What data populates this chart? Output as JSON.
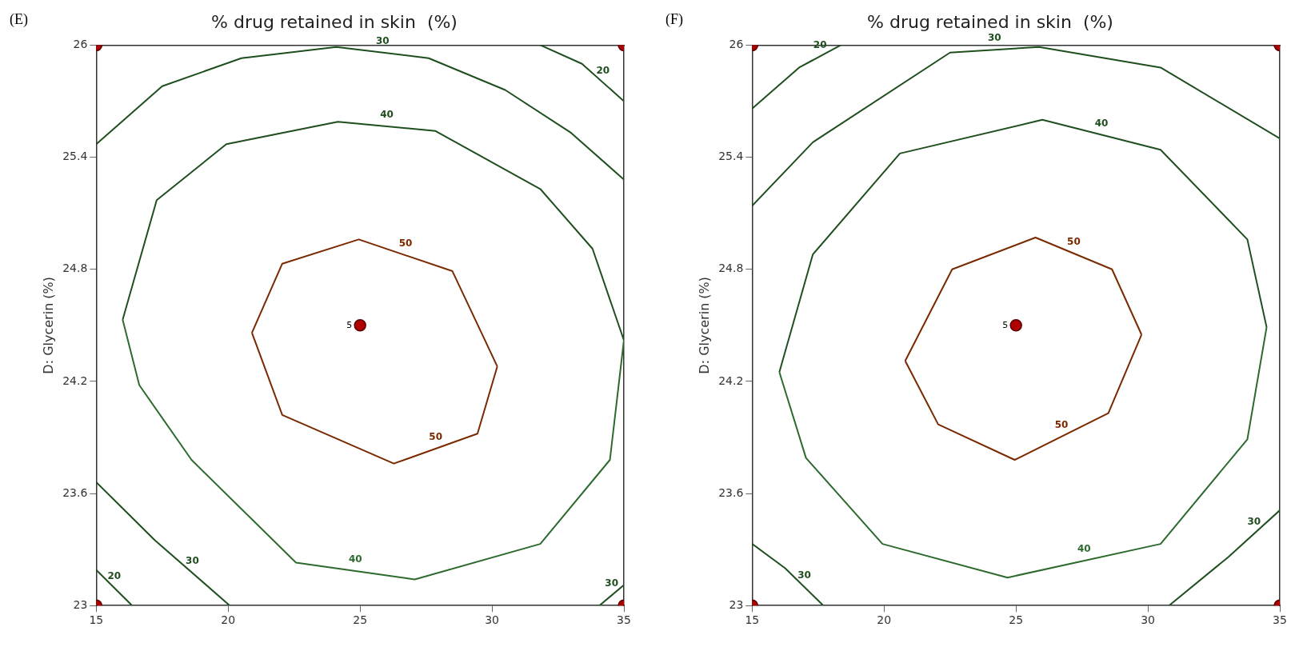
{
  "chart_data": [
    {
      "type": "line",
      "title": "% drug retained in skin  (%)",
      "ylabel": "D: Glycerin (%)",
      "annotations": [
        "(E)",
        {
          "text": "5",
          "x": 25,
          "y": 24.5
        }
      ],
      "xlim": [
        15,
        35
      ],
      "ylim": [
        23,
        26
      ],
      "xticks": [
        15,
        20,
        25,
        30,
        35
      ],
      "yticks": [
        23,
        23.6,
        24.2,
        24.8,
        25.4,
        26
      ],
      "grid": false,
      "legend": false,
      "marker": "none",
      "series": [
        {
          "name": "50",
          "color": "#7a2a00",
          "x": [
            20.9,
            22.05,
            24.95,
            28.5,
            30.2
          ],
          "values": [
            24.46,
            24.83,
            24.96,
            24.79,
            24.28
          ]
        },
        {
          "name": "50",
          "color": "#7a2a00",
          "x": [
            20.9,
            22.05,
            26.28,
            29.45,
            30.2
          ],
          "values": [
            24.46,
            24.02,
            23.76,
            23.92,
            24.28
          ]
        },
        {
          "name": "40",
          "color": "#1f4f1f",
          "x": [
            16.0,
            17.29,
            19.93,
            24.16,
            27.86,
            31.83,
            33.81,
            35
          ],
          "values": [
            24.53,
            25.17,
            25.47,
            25.59,
            25.54,
            25.23,
            24.91,
            24.42
          ]
        },
        {
          "name": "40",
          "color": "#2d6a2d",
          "x": [
            16.0,
            16.63,
            18.61,
            22.57,
            27.07,
            31.83,
            34.47,
            35
          ],
          "values": [
            24.53,
            24.18,
            23.78,
            23.23,
            23.14,
            23.33,
            23.78,
            24.42
          ]
        },
        {
          "name": "30",
          "color": "#1f4f1f",
          "x": [
            15,
            17.5,
            20.5,
            24.1,
            27.6,
            30.5,
            33,
            35
          ],
          "values": [
            25.47,
            25.78,
            25.93,
            25.99,
            25.93,
            25.76,
            25.53,
            25.28
          ]
        },
        {
          "name": "30",
          "color": "#1f4f1f",
          "x": [
            15,
            17.22,
            20.06
          ],
          "values": [
            23.66,
            23.35,
            23.0
          ]
        },
        {
          "name": "30",
          "color": "#1f4f1f",
          "x": [
            34.07,
            35
          ],
          "values": [
            23.0,
            23.11
          ]
        },
        {
          "name": "20",
          "color": "#1f4f1f",
          "x": [
            31.83,
            33.41,
            35
          ],
          "values": [
            26.0,
            25.9,
            25.7
          ]
        },
        {
          "name": "20",
          "color": "#1f4f1f",
          "x": [
            15,
            16.36
          ],
          "values": [
            23.19,
            23.0
          ]
        },
        {
          "type": "scatter",
          "marker": "circle",
          "color": "#b00000",
          "x": [
            15,
            15,
            35,
            35,
            25
          ],
          "values": [
            23,
            26,
            23,
            26,
            24.5
          ]
        }
      ]
    },
    {
      "type": "line",
      "title": "% drug retained in skin  (%)",
      "ylabel": "D: Glycerin (%)",
      "annotations": [
        "(F)",
        {
          "text": "5",
          "x": 25,
          "y": 24.5
        }
      ],
      "xlim": [
        15,
        35
      ],
      "ylim": [
        23,
        26
      ],
      "xticks": [
        15,
        20,
        25,
        30,
        35
      ],
      "yticks": [
        23,
        23.6,
        24.2,
        24.8,
        25.4,
        26
      ],
      "grid": false,
      "legend": false,
      "marker": "none",
      "series": [
        {
          "name": "50",
          "color": "#7a2a00",
          "x": [
            20.8,
            22.58,
            25.74,
            28.64,
            29.76
          ],
          "values": [
            24.31,
            24.8,
            24.97,
            24.8,
            24.45
          ]
        },
        {
          "name": "50",
          "color": "#7a2a00",
          "x": [
            20.8,
            22.05,
            24.95,
            28.5,
            29.76
          ],
          "values": [
            24.31,
            23.97,
            23.78,
            24.03,
            24.45
          ]
        },
        {
          "name": "40",
          "color": "#1f4f1f",
          "x": [
            16.03,
            17.3,
            20.6,
            26.0,
            30.48,
            33.77,
            34.5
          ],
          "values": [
            24.25,
            24.88,
            25.42,
            25.6,
            25.44,
            24.96,
            24.49
          ]
        },
        {
          "name": "40",
          "color": "#2d6a2d",
          "x": [
            16.03,
            17.04,
            19.94,
            24.68,
            30.48,
            33.77,
            34.5
          ],
          "values": [
            24.25,
            23.79,
            23.33,
            23.15,
            23.33,
            23.89,
            24.49
          ]
        },
        {
          "name": "30",
          "color": "#1f4f1f",
          "x": [
            15,
            17.3,
            22.5,
            25.87,
            30.48,
            35
          ],
          "values": [
            25.14,
            25.48,
            25.96,
            25.99,
            25.88,
            25.5
          ]
        },
        {
          "name": "30",
          "color": "#1f4f1f",
          "x": [
            15,
            16.25,
            17.7
          ],
          "values": [
            23.33,
            23.2,
            23.0
          ]
        },
        {
          "name": "30",
          "color": "#1f4f1f",
          "x": [
            30.8,
            33.05,
            35
          ],
          "values": [
            23.0,
            23.26,
            23.51
          ]
        },
        {
          "name": "20",
          "color": "#1f4f1f",
          "x": [
            15,
            16.78,
            18.36
          ],
          "values": [
            25.66,
            25.88,
            26.0
          ]
        },
        {
          "type": "scatter",
          "marker": "circle",
          "color": "#b00000",
          "x": [
            15,
            15,
            35,
            35,
            25
          ],
          "values": [
            23,
            26,
            23,
            26,
            24.5
          ]
        }
      ]
    }
  ]
}
